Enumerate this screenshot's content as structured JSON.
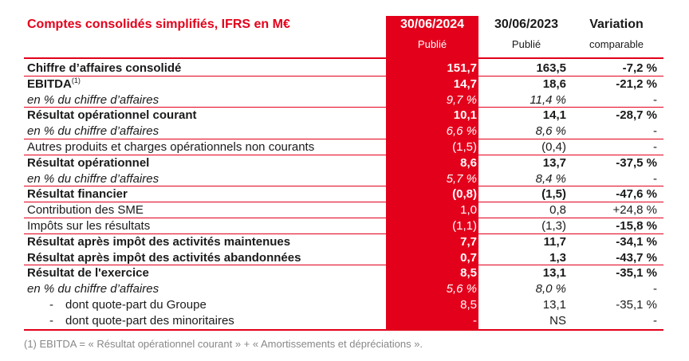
{
  "title": "Comptes consolidés simplifiés, IFRS en M€",
  "headers": {
    "col1": {
      "main": "30/06/2024",
      "sub": "Publié"
    },
    "col2": {
      "main": "30/06/2023",
      "sub": "Publié"
    },
    "col3": {
      "main": "Variation",
      "sub": "comparable"
    }
  },
  "rows": [
    {
      "label": "Chiffre d’affaires consolidé",
      "v1": "151,7",
      "v2": "163,5",
      "v3": "-7,2 %"
    },
    {
      "label": "EBITDA",
      "sup": "(1)",
      "v1": "14,7",
      "v2": "18,6",
      "v3": "-21,2 %"
    },
    {
      "label": "en % du chiffre d’affaires",
      "v1": "9,7 %",
      "v2": "11,4 %",
      "v3": "-"
    },
    {
      "label": "Résultat opérationnel courant",
      "v1": "10,1",
      "v2": "14,1",
      "v3": "-28,7 %"
    },
    {
      "label": "en % du chiffre d’affaires",
      "v1": "6,6 %",
      "v2": "8,6 %",
      "v3": "-"
    },
    {
      "label": "Autres produits et charges opérationnels non courants",
      "v1": "(1,5)",
      "v2": "(0,4)",
      "v3": "-"
    },
    {
      "label": "Résultat opérationnel",
      "v1": "8,6",
      "v2": "13,7",
      "v3": "-37,5 %"
    },
    {
      "label": "en % du chiffre d’affaires",
      "v1": "5,7 %",
      "v2": "8,4 %",
      "v3": "-"
    },
    {
      "label": "Résultat financier",
      "v1": "(0,8)",
      "v2": "(1,5)",
      "v3": "-47,6 %"
    },
    {
      "label": "Contribution des SME",
      "v1": "1,0",
      "v2": "0,8",
      "v3": "+24,8 %"
    },
    {
      "label": "Impôts sur les résultats",
      "v1": "(1,1)",
      "v2": "(1,3)",
      "v3": "-15,8 %"
    },
    {
      "label": "Résultat après impôt des activités maintenues",
      "v1": "7,7",
      "v2": "11,7",
      "v3": "-34,1 %"
    },
    {
      "label": "Résultat après impôt des activités abandonnées",
      "v1": "0,7",
      "v2": "1,3",
      "v3": "-43,7 %"
    },
    {
      "label": "Résultat de l'exercice",
      "v1": "8,5",
      "v2": "13,1",
      "v3": "-35,1 %"
    },
    {
      "label": "en % du chiffre d’affaires",
      "v1": "5,6 %",
      "v2": "8,0 %",
      "v3": "-"
    },
    {
      "dash": "-",
      "label": "dont quote-part du Groupe",
      "v1": "8,5",
      "v2": "13,1",
      "v3": "-35,1 %"
    },
    {
      "dash": "-",
      "label": "dont quote-part des minoritaires",
      "v1": "-",
      "v2": "NS",
      "v3": "-"
    }
  ],
  "footnote": "(1) EBITDA = « Résultat opérationnel courant » + « Amortissements et dépréciations ».",
  "colors": {
    "accent": "#e3001b",
    "footnote": "#888888"
  }
}
